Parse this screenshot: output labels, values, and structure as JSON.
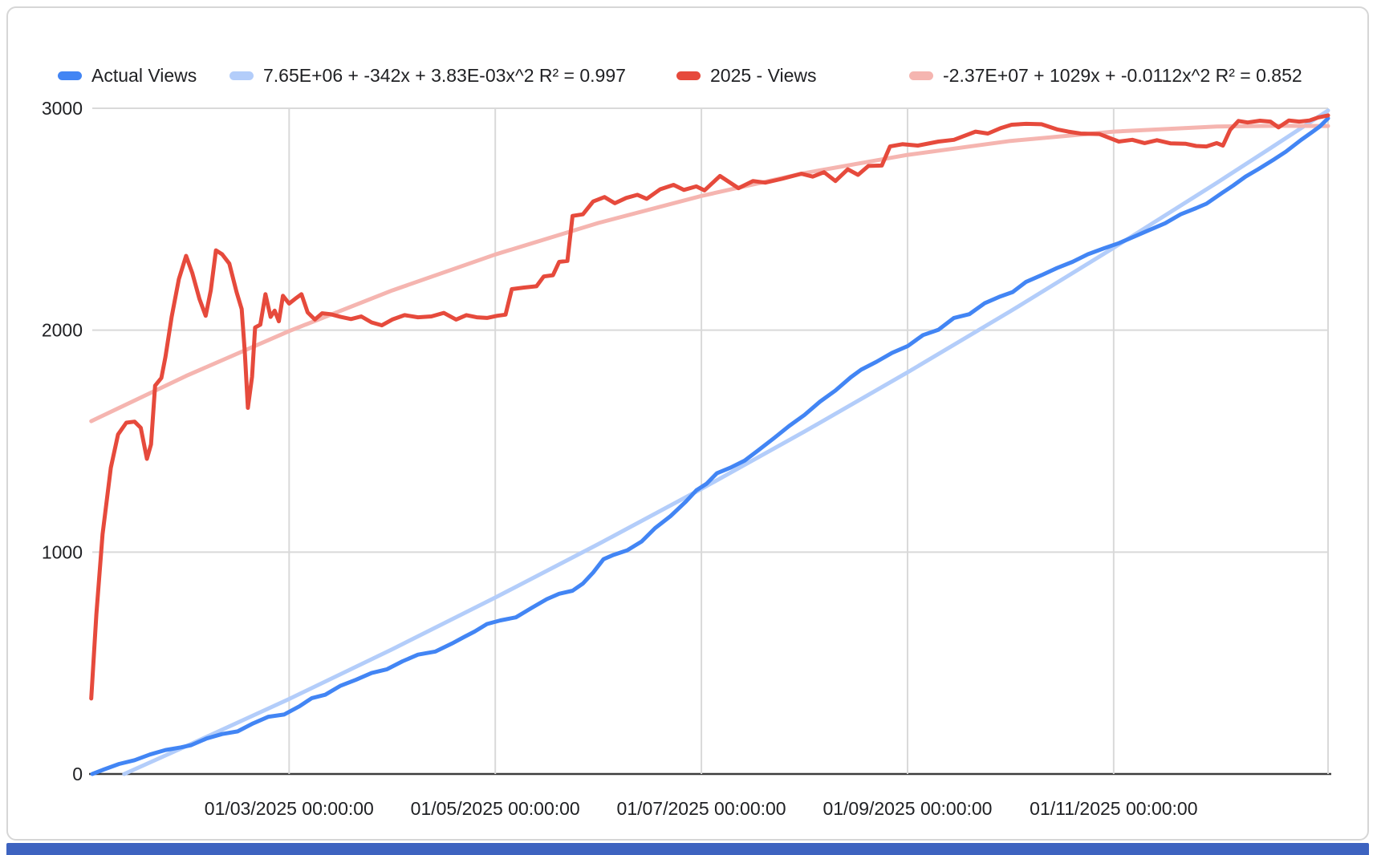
{
  "page": {
    "background": "#ffffff"
  },
  "card": {
    "border_color": "#d6d6d6",
    "background": "#ffffff"
  },
  "bottom_bar": {
    "color": "#3d63c0"
  },
  "chart_data": {
    "type": "line",
    "title": "",
    "legend_position": "top",
    "grid": true,
    "x_axis": {
      "unit": "days since 01/01/2025 00:00:00",
      "min": 0.09,
      "max": 12.08,
      "gridline_color": "#d9d9d9",
      "axis_line_color": "#3c3c3c",
      "label_color": "#202124",
      "ticks": [
        {
          "t": 2,
          "label": "01/03/2025 00:00:00"
        },
        {
          "t": 4,
          "label": "01/05/2025 00:00:00"
        },
        {
          "t": 6,
          "label": "01/07/2025 00:00:00"
        },
        {
          "t": 8,
          "label": "01/09/2025 00:00:00"
        },
        {
          "t": 10,
          "label": "01/11/2025 00:00:00"
        }
      ],
      "right_border": true
    },
    "y_axis": {
      "min": 0,
      "max": 3000,
      "gridline_color": "#d9d9d9",
      "label_color": "#202124",
      "ticks": [
        {
          "v": 0,
          "label": "0"
        },
        {
          "v": 1000,
          "label": "1000"
        },
        {
          "v": 2000,
          "label": "2000"
        },
        {
          "v": 3000,
          "label": "3000"
        }
      ]
    },
    "series": [
      {
        "name": "actual-views",
        "label": "Actual Views",
        "color": "#4285f4",
        "width": 5,
        "layer": 1,
        "points": [
          [
            0.09,
            0
          ],
          [
            0.2,
            20
          ],
          [
            0.35,
            45
          ],
          [
            0.5,
            62
          ],
          [
            0.65,
            88
          ],
          [
            0.8,
            108
          ],
          [
            0.95,
            120
          ],
          [
            1.05,
            130
          ],
          [
            1.2,
            160
          ],
          [
            1.35,
            180
          ],
          [
            1.5,
            192
          ],
          [
            1.65,
            228
          ],
          [
            1.8,
            258
          ],
          [
            1.95,
            268
          ],
          [
            2.1,
            305
          ],
          [
            2.22,
            342
          ],
          [
            2.35,
            357
          ],
          [
            2.5,
            398
          ],
          [
            2.65,
            425
          ],
          [
            2.8,
            455
          ],
          [
            2.95,
            472
          ],
          [
            3.1,
            508
          ],
          [
            3.25,
            538
          ],
          [
            3.42,
            552
          ],
          [
            3.58,
            588
          ],
          [
            3.7,
            618
          ],
          [
            3.8,
            642
          ],
          [
            3.92,
            676
          ],
          [
            4.05,
            692
          ],
          [
            4.2,
            706
          ],
          [
            4.35,
            748
          ],
          [
            4.5,
            788
          ],
          [
            4.62,
            812
          ],
          [
            4.75,
            826
          ],
          [
            4.85,
            858
          ],
          [
            4.95,
            908
          ],
          [
            5.05,
            968
          ],
          [
            5.15,
            988
          ],
          [
            5.28,
            1008
          ],
          [
            5.42,
            1048
          ],
          [
            5.55,
            1108
          ],
          [
            5.7,
            1162
          ],
          [
            5.85,
            1228
          ],
          [
            5.95,
            1278
          ],
          [
            6.05,
            1308
          ],
          [
            6.15,
            1355
          ],
          [
            6.28,
            1380
          ],
          [
            6.42,
            1412
          ],
          [
            6.55,
            1458
          ],
          [
            6.7,
            1512
          ],
          [
            6.85,
            1568
          ],
          [
            7.0,
            1618
          ],
          [
            7.15,
            1678
          ],
          [
            7.3,
            1728
          ],
          [
            7.45,
            1788
          ],
          [
            7.55,
            1822
          ],
          [
            7.7,
            1858
          ],
          [
            7.85,
            1898
          ],
          [
            8.0,
            1928
          ],
          [
            8.15,
            1978
          ],
          [
            8.3,
            2002
          ],
          [
            8.45,
            2055
          ],
          [
            8.6,
            2072
          ],
          [
            8.75,
            2122
          ],
          [
            8.9,
            2152
          ],
          [
            9.02,
            2172
          ],
          [
            9.15,
            2218
          ],
          [
            9.3,
            2248
          ],
          [
            9.45,
            2280
          ],
          [
            9.6,
            2308
          ],
          [
            9.75,
            2342
          ],
          [
            9.9,
            2368
          ],
          [
            10.05,
            2392
          ],
          [
            10.2,
            2422
          ],
          [
            10.35,
            2452
          ],
          [
            10.5,
            2482
          ],
          [
            10.65,
            2522
          ],
          [
            10.8,
            2550
          ],
          [
            10.9,
            2570
          ],
          [
            11.05,
            2618
          ],
          [
            11.16,
            2652
          ],
          [
            11.28,
            2692
          ],
          [
            11.4,
            2725
          ],
          [
            11.55,
            2768
          ],
          [
            11.67,
            2804
          ],
          [
            11.82,
            2858
          ],
          [
            11.93,
            2894
          ],
          [
            12.0,
            2918
          ],
          [
            12.08,
            2955
          ]
        ]
      },
      {
        "name": "actual-views-trend",
        "label": "7.65E+06 + -342x + 3.83E-03x^2 R² = 0.997",
        "color": "#b3cdfa",
        "width": 5,
        "layer": 0,
        "points": [
          [
            0.4,
            0
          ],
          [
            1,
            125
          ],
          [
            2,
            338
          ],
          [
            3,
            562
          ],
          [
            4,
            795
          ],
          [
            5,
            1036
          ],
          [
            6,
            1285
          ],
          [
            7,
            1543
          ],
          [
            8,
            1810
          ],
          [
            9,
            2086
          ],
          [
            10,
            2371
          ],
          [
            11,
            2664
          ],
          [
            11.5,
            2814
          ],
          [
            12.08,
            2990
          ]
        ]
      },
      {
        "name": "views-2025",
        "label": "2025 - Views",
        "color": "#e64a3c",
        "width": 5,
        "layer": 1,
        "points": [
          [
            0.08,
            340
          ],
          [
            0.13,
            720
          ],
          [
            0.19,
            1080
          ],
          [
            0.27,
            1380
          ],
          [
            0.34,
            1530
          ],
          [
            0.42,
            1583
          ],
          [
            0.5,
            1588
          ],
          [
            0.56,
            1560
          ],
          [
            0.62,
            1420
          ],
          [
            0.66,
            1485
          ],
          [
            0.7,
            1750
          ],
          [
            0.76,
            1785
          ],
          [
            0.8,
            1880
          ],
          [
            0.86,
            2060
          ],
          [
            0.93,
            2230
          ],
          [
            1.0,
            2335
          ],
          [
            1.06,
            2258
          ],
          [
            1.13,
            2140
          ],
          [
            1.19,
            2065
          ],
          [
            1.24,
            2180
          ],
          [
            1.29,
            2360
          ],
          [
            1.35,
            2342
          ],
          [
            1.42,
            2300
          ],
          [
            1.49,
            2172
          ],
          [
            1.54,
            2095
          ],
          [
            1.57,
            1900
          ],
          [
            1.6,
            1650
          ],
          [
            1.64,
            1790
          ],
          [
            1.67,
            2012
          ],
          [
            1.72,
            2025
          ],
          [
            1.77,
            2162
          ],
          [
            1.82,
            2060
          ],
          [
            1.86,
            2088
          ],
          [
            1.9,
            2040
          ],
          [
            1.94,
            2155
          ],
          [
            2.0,
            2120
          ],
          [
            2.06,
            2142
          ],
          [
            2.12,
            2162
          ],
          [
            2.18,
            2080
          ],
          [
            2.25,
            2048
          ],
          [
            2.32,
            2076
          ],
          [
            2.4,
            2072
          ],
          [
            2.5,
            2060
          ],
          [
            2.6,
            2050
          ],
          [
            2.7,
            2062
          ],
          [
            2.8,
            2035
          ],
          [
            2.9,
            2022
          ],
          [
            3.0,
            2048
          ],
          [
            3.12,
            2068
          ],
          [
            3.25,
            2058
          ],
          [
            3.38,
            2062
          ],
          [
            3.5,
            2078
          ],
          [
            3.62,
            2048
          ],
          [
            3.72,
            2068
          ],
          [
            3.82,
            2058
          ],
          [
            3.92,
            2055
          ],
          [
            4.02,
            2065
          ],
          [
            4.1,
            2070
          ],
          [
            4.16,
            2185
          ],
          [
            4.28,
            2192
          ],
          [
            4.4,
            2198
          ],
          [
            4.47,
            2242
          ],
          [
            4.56,
            2248
          ],
          [
            4.62,
            2308
          ],
          [
            4.7,
            2312
          ],
          [
            4.75,
            2515
          ],
          [
            4.85,
            2522
          ],
          [
            4.95,
            2580
          ],
          [
            5.06,
            2600
          ],
          [
            5.16,
            2572
          ],
          [
            5.27,
            2596
          ],
          [
            5.38,
            2610
          ],
          [
            5.47,
            2592
          ],
          [
            5.6,
            2635
          ],
          [
            5.73,
            2655
          ],
          [
            5.83,
            2632
          ],
          [
            5.95,
            2648
          ],
          [
            6.03,
            2630
          ],
          [
            6.18,
            2695
          ],
          [
            6.36,
            2640
          ],
          [
            6.5,
            2672
          ],
          [
            6.62,
            2665
          ],
          [
            6.78,
            2682
          ],
          [
            6.97,
            2705
          ],
          [
            7.08,
            2692
          ],
          [
            7.19,
            2712
          ],
          [
            7.3,
            2672
          ],
          [
            7.42,
            2725
          ],
          [
            7.52,
            2700
          ],
          [
            7.62,
            2740
          ],
          [
            7.75,
            2742
          ],
          [
            7.83,
            2828
          ],
          [
            7.95,
            2838
          ],
          [
            8.1,
            2832
          ],
          [
            8.3,
            2850
          ],
          [
            8.45,
            2858
          ],
          [
            8.66,
            2895
          ],
          [
            8.78,
            2886
          ],
          [
            8.9,
            2910
          ],
          [
            9.01,
            2926
          ],
          [
            9.15,
            2930
          ],
          [
            9.3,
            2928
          ],
          [
            9.45,
            2905
          ],
          [
            9.56,
            2895
          ],
          [
            9.68,
            2886
          ],
          [
            9.86,
            2884
          ],
          [
            10.05,
            2850
          ],
          [
            10.18,
            2858
          ],
          [
            10.3,
            2843
          ],
          [
            10.42,
            2856
          ],
          [
            10.55,
            2842
          ],
          [
            10.7,
            2840
          ],
          [
            10.8,
            2830
          ],
          [
            10.9,
            2828
          ],
          [
            11.0,
            2843
          ],
          [
            11.06,
            2832
          ],
          [
            11.13,
            2903
          ],
          [
            11.21,
            2943
          ],
          [
            11.3,
            2936
          ],
          [
            11.42,
            2944
          ],
          [
            11.52,
            2940
          ],
          [
            11.6,
            2914
          ],
          [
            11.7,
            2945
          ],
          [
            11.8,
            2940
          ],
          [
            11.9,
            2945
          ],
          [
            11.98,
            2958
          ],
          [
            12.08,
            2968
          ]
        ]
      },
      {
        "name": "views-2025-trend",
        "label": "-2.37E+07 + 1029x + -0.0112x^2 R² = 0.852",
        "color": "#f5b5b0",
        "width": 5,
        "layer": 0,
        "points": [
          [
            0.08,
            1590
          ],
          [
            1,
            1794
          ],
          [
            2,
            1996
          ],
          [
            3,
            2179
          ],
          [
            4,
            2341
          ],
          [
            5,
            2483
          ],
          [
            6,
            2605
          ],
          [
            7,
            2708
          ],
          [
            8,
            2790
          ],
          [
            9,
            2853
          ],
          [
            10,
            2895
          ],
          [
            11,
            2918
          ],
          [
            11.6,
            2921
          ],
          [
            12.08,
            2920
          ]
        ]
      }
    ]
  }
}
